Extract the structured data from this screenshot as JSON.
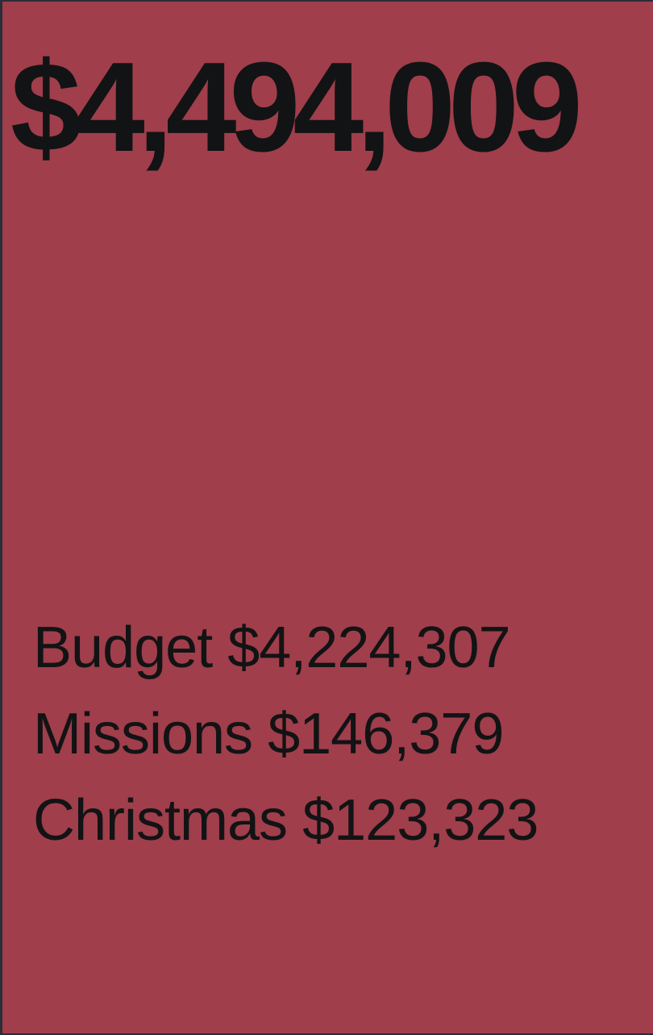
{
  "total": "$4,494,009",
  "breakdown": [
    {
      "label": "Budget",
      "amount": "$4,224,307"
    },
    {
      "label": "Missions",
      "amount": "$146,379"
    },
    {
      "label": "Christmas",
      "amount": "$123,323"
    }
  ],
  "colors": {
    "panel_background": "#a03e4b",
    "text": "#121314",
    "border": "#2a2d3a"
  }
}
